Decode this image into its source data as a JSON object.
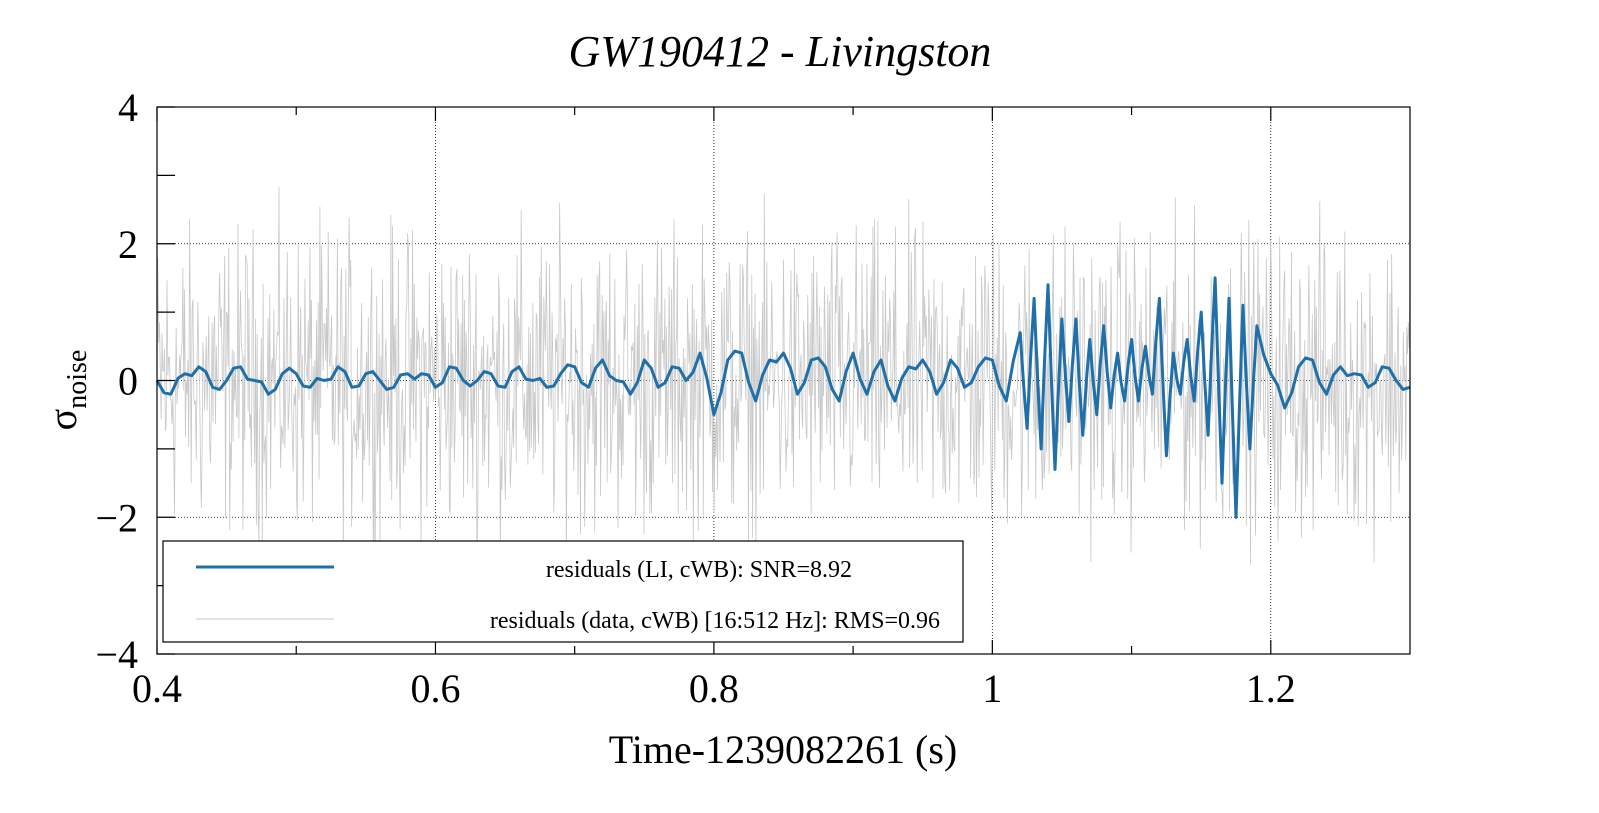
{
  "chart_data": {
    "type": "line",
    "title": "GW190412 - Livingston",
    "xlabel": "Time-1239082261 (s)",
    "ylabel_main": "σ",
    "ylabel_sub": "noise",
    "xlim": [
      0.4,
      1.3
    ],
    "ylim": [
      -4,
      4
    ],
    "x_ticks": [
      0.4,
      0.6,
      0.8,
      1.0,
      1.2
    ],
    "x_tick_labels": [
      "0.4",
      "0.6",
      "0.8",
      "1",
      "1.2"
    ],
    "x_minor_ticks": [
      0.5,
      0.7,
      0.9,
      1.1
    ],
    "y_ticks": [
      -4,
      -2,
      0,
      2,
      4
    ],
    "y_tick_labels": [
      "−4",
      "−2",
      "0",
      "2",
      "4"
    ],
    "grid": true,
    "legend_position": "bottom-left",
    "series": [
      {
        "name": "residuals (LI, cWB): SNR=8.92",
        "color": "#1f6fa9",
        "style": "thick",
        "x": [
          0.4,
          0.41,
          0.42,
          0.43,
          0.44,
          0.45,
          0.46,
          0.47,
          0.48,
          0.49,
          0.5,
          0.51,
          0.52,
          0.53,
          0.54,
          0.55,
          0.56,
          0.57,
          0.58,
          0.59,
          0.6,
          0.61,
          0.62,
          0.63,
          0.64,
          0.65,
          0.66,
          0.67,
          0.68,
          0.69,
          0.7,
          0.71,
          0.72,
          0.73,
          0.74,
          0.75,
          0.76,
          0.77,
          0.78,
          0.79,
          0.8,
          0.81,
          0.82,
          0.83,
          0.84,
          0.85,
          0.86,
          0.87,
          0.88,
          0.89,
          0.9,
          0.91,
          0.92,
          0.93,
          0.94,
          0.95,
          0.96,
          0.97,
          0.98,
          0.99,
          1.0,
          1.01,
          1.02,
          1.025,
          1.03,
          1.035,
          1.04,
          1.045,
          1.05,
          1.055,
          1.06,
          1.065,
          1.07,
          1.075,
          1.08,
          1.085,
          1.09,
          1.095,
          1.1,
          1.105,
          1.11,
          1.115,
          1.12,
          1.125,
          1.13,
          1.135,
          1.14,
          1.145,
          1.15,
          1.155,
          1.16,
          1.165,
          1.17,
          1.175,
          1.18,
          1.185,
          1.19,
          1.2,
          1.21,
          1.22,
          1.23,
          1.24,
          1.25,
          1.26,
          1.27,
          1.28,
          1.29,
          1.3
        ],
        "y": [
          0.0,
          -0.2,
          0.1,
          0.2,
          -0.1,
          0.0,
          0.2,
          0.0,
          -0.2,
          0.1,
          0.1,
          -0.1,
          0.0,
          0.2,
          -0.1,
          0.1,
          0.0,
          -0.1,
          0.1,
          0.1,
          -0.1,
          0.2,
          0.0,
          0.0,
          0.1,
          -0.1,
          0.2,
          0.0,
          -0.1,
          0.1,
          0.2,
          -0.1,
          0.3,
          0.0,
          -0.2,
          0.3,
          -0.1,
          0.2,
          0.0,
          0.4,
          -0.5,
          0.3,
          0.4,
          -0.3,
          0.3,
          0.4,
          -0.2,
          0.3,
          0.2,
          -0.3,
          0.4,
          -0.2,
          0.3,
          -0.3,
          0.2,
          0.3,
          -0.2,
          0.3,
          -0.1,
          0.2,
          0.3,
          -0.3,
          0.7,
          -0.7,
          1.2,
          -1.0,
          1.4,
          -1.3,
          0.9,
          -0.6,
          0.9,
          -0.8,
          0.6,
          -0.5,
          0.8,
          -0.4,
          0.4,
          -0.3,
          0.6,
          -0.3,
          0.5,
          -0.2,
          1.2,
          -1.1,
          0.4,
          -0.2,
          0.6,
          -0.3,
          1.0,
          -0.8,
          1.5,
          -1.5,
          1.2,
          -2.0,
          1.1,
          -1.0,
          0.8,
          0.1,
          -0.4,
          0.2,
          0.3,
          -0.2,
          0.2,
          0.1,
          -0.1,
          0.2,
          0.0,
          -0.1
        ]
      },
      {
        "name": "residuals (data, cWB) [16:512 Hz]: RMS=0.96",
        "color": "#c8c8c8",
        "style": "thin noise",
        "rms": 0.96
      }
    ]
  }
}
